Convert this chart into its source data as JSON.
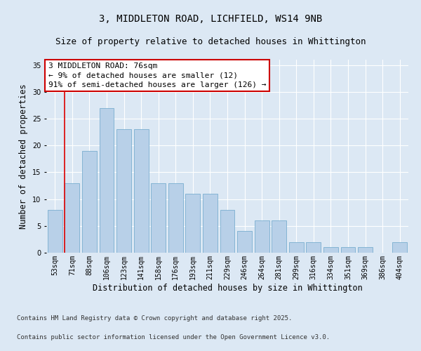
{
  "title_line1": "3, MIDDLETON ROAD, LICHFIELD, WS14 9NB",
  "title_line2": "Size of property relative to detached houses in Whittington",
  "xlabel": "Distribution of detached houses by size in Whittington",
  "ylabel": "Number of detached properties",
  "categories": [
    "53sqm",
    "71sqm",
    "88sqm",
    "106sqm",
    "123sqm",
    "141sqm",
    "158sqm",
    "176sqm",
    "193sqm",
    "211sqm",
    "229sqm",
    "246sqm",
    "264sqm",
    "281sqm",
    "299sqm",
    "316sqm",
    "334sqm",
    "351sqm",
    "369sqm",
    "386sqm",
    "404sqm"
  ],
  "values": [
    8,
    13,
    19,
    27,
    23,
    23,
    13,
    13,
    11,
    11,
    8,
    4,
    6,
    6,
    2,
    2,
    1,
    1,
    1,
    0,
    2
  ],
  "bar_color": "#b8d0e8",
  "bar_edge_color": "#7aaed0",
  "vline_index": 1,
  "vline_color": "#dd0000",
  "ylim": [
    0,
    36
  ],
  "yticks": [
    0,
    5,
    10,
    15,
    20,
    25,
    30,
    35
  ],
  "annotation_text": "3 MIDDLETON ROAD: 76sqm\n← 9% of detached houses are smaller (12)\n91% of semi-detached houses are larger (126) →",
  "annotation_box_facecolor": "#ffffff",
  "annotation_box_edgecolor": "#cc0000",
  "footer_line1": "Contains HM Land Registry data © Crown copyright and database right 2025.",
  "footer_line2": "Contains public sector information licensed under the Open Government Licence v3.0.",
  "bg_color": "#dce8f4",
  "plot_bg_color": "#dce8f4",
  "grid_color": "#ffffff",
  "title_fontsize": 10,
  "subtitle_fontsize": 9,
  "axis_label_fontsize": 8.5,
  "tick_fontsize": 7,
  "annotation_fontsize": 8,
  "footer_fontsize": 6.5
}
